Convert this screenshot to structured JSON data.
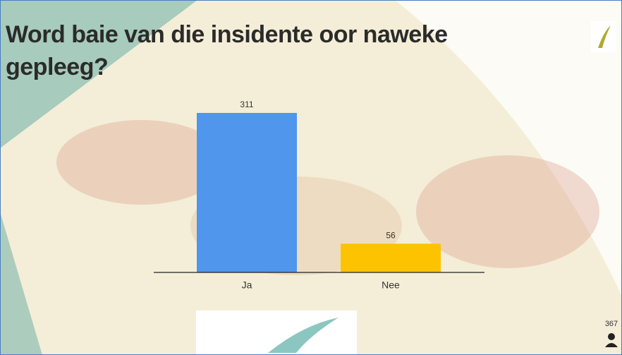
{
  "chart_data": {
    "type": "bar",
    "title": "Word baie van die insidente oor naweke gepleeg?",
    "categories": [
      "Ja",
      "Nee"
    ],
    "values": [
      311,
      56
    ],
    "colors": [
      "#4f96ec",
      "#fdc300"
    ]
  },
  "participant_count": 367
}
